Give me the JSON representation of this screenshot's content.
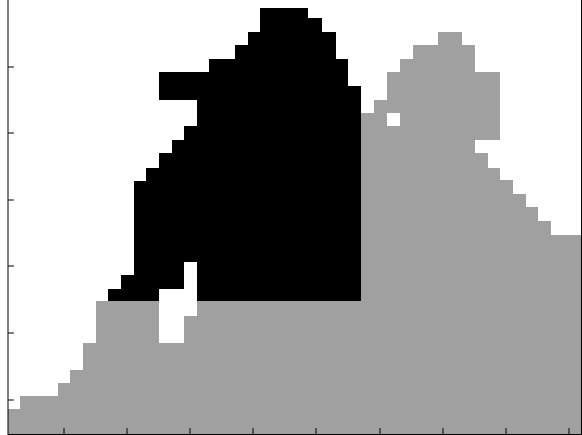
{
  "figure": {
    "type": "pixelated occupancy / segmentation plot",
    "legend": "none",
    "axis_tick_labels": "none visible",
    "colors": {
      "background": "#ffffff",
      "black_region": "#000000",
      "gray_region": "#a0a0a0",
      "axes": "#000000"
    },
    "ticks": {
      "left_count": 6,
      "bottom_count": 9
    }
  }
}
